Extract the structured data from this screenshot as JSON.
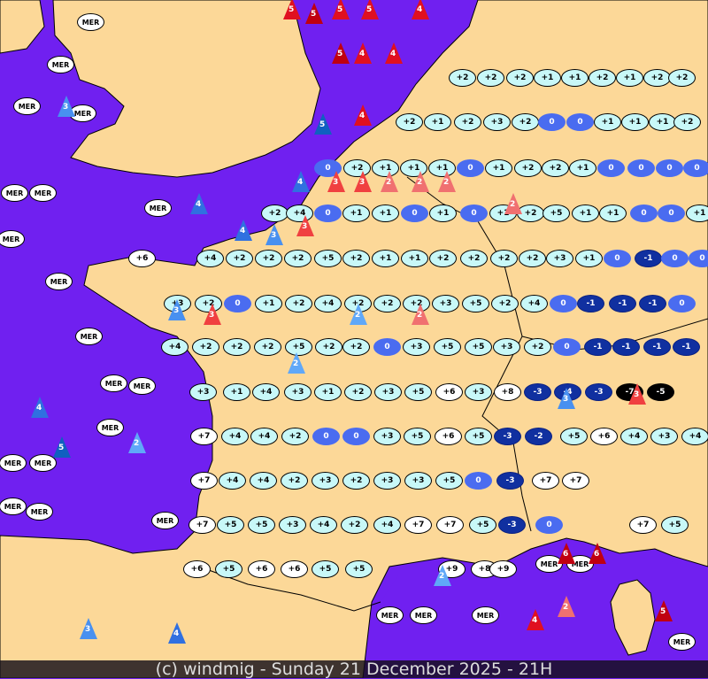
{
  "caption": "(c) windmig - Sunday 21 December 2025 - 21H",
  "colors": {
    "sea": "#7020f0",
    "land": "#fcd898",
    "temp_positive": "#c8f8f8",
    "temp_zero": "#4a6cf0",
    "temp_negative": "#1030a0",
    "wind_red": "#f04040",
    "wind_blue": "#4890f0"
  },
  "temperature_rows": [
    [
      "+2",
      "+2",
      "+2",
      "+1",
      "+1",
      "+2",
      "+1",
      "+2",
      "+2"
    ],
    [
      "+2",
      "+1",
      "+2",
      "+3",
      "+2",
      "0",
      "0",
      "+1",
      "+1",
      "+1",
      "+2"
    ],
    [
      "0",
      "+2",
      "+1",
      "+1",
      "+1",
      "0",
      "+1",
      "+2",
      "+2",
      "+1",
      "0",
      "0",
      "0",
      "0"
    ],
    [
      "+2",
      "+4",
      "0",
      "+1",
      "+1",
      "0",
      "+1",
      "0",
      "+1",
      "+2",
      "+5",
      "+1",
      "+1",
      "0",
      "0",
      "+1"
    ],
    [
      "+6",
      "+4",
      "+2",
      "+2",
      "+2",
      "+5",
      "+2",
      "+1",
      "+1",
      "+2",
      "+2",
      "+2",
      "+2",
      "+3",
      "+1",
      "0",
      "-1",
      "0",
      "0"
    ],
    [
      "+3",
      "+2",
      "0",
      "+1",
      "+2",
      "+4",
      "+2",
      "+2",
      "+2",
      "+3",
      "+5",
      "+2",
      "+4",
      "0",
      "-1",
      "-1",
      "-1",
      "0"
    ],
    [
      "+4",
      "+2",
      "+2",
      "+2",
      "+5",
      "+2",
      "+2",
      "0",
      "+3",
      "+5",
      "+5",
      "+3",
      "+2",
      "0",
      "-1",
      "-1",
      "-1",
      "-1"
    ],
    [
      "+3",
      "+1",
      "+4",
      "+3",
      "+1",
      "+2",
      "+3",
      "+5",
      "+6",
      "+3",
      "+8",
      "-3",
      "-4",
      "-3",
      "-7",
      "-5"
    ],
    [
      "+7",
      "+4",
      "+4",
      "+2",
      "0",
      "0",
      "+3",
      "+5",
      "+6",
      "+5",
      "-3",
      "-2",
      "+5",
      "+6",
      "+4",
      "+3",
      "+4"
    ],
    [
      "+7",
      "+4",
      "+4",
      "+2",
      "+3",
      "+2",
      "+3",
      "+3",
      "+5",
      "0",
      "-3",
      "+7",
      "+7"
    ],
    [
      "+7",
      "+5",
      "+5",
      "+3",
      "+4",
      "+2",
      "+4",
      "+7",
      "+7",
      "+5",
      "-3",
      "0",
      "+7",
      "+5"
    ],
    [
      "+6",
      "+5",
      "+6",
      "+6",
      "+5",
      "+5",
      "+9",
      "+8",
      "+9"
    ]
  ],
  "sea_labels": [
    "MER",
    "MER",
    "MER",
    "MER",
    "MER",
    "MER",
    "MER",
    "MER",
    "MER",
    "MER",
    "MER",
    "MER",
    "MER",
    "MER",
    "MER",
    "MER",
    "MER",
    "MER",
    "MER",
    "MER",
    "MER",
    "MER",
    "MER",
    "MER"
  ],
  "wind_arrows": [
    {
      "speed": "5",
      "tone": "red4"
    },
    {
      "speed": "5",
      "tone": "red4"
    },
    {
      "speed": "5",
      "tone": "red4"
    },
    {
      "speed": "4",
      "tone": "red4"
    },
    {
      "speed": "5",
      "tone": "red5"
    },
    {
      "speed": "4",
      "tone": "red4"
    },
    {
      "speed": "5",
      "tone": "red5"
    },
    {
      "speed": "4",
      "tone": "red4"
    },
    {
      "speed": "3",
      "tone": "red3"
    },
    {
      "speed": "3",
      "tone": "red3"
    },
    {
      "speed": "3",
      "tone": "red3"
    },
    {
      "speed": "2",
      "tone": "red2"
    },
    {
      "speed": "2",
      "tone": "red2"
    },
    {
      "speed": "2",
      "tone": "red2"
    },
    {
      "speed": "2",
      "tone": "red2"
    },
    {
      "speed": "3",
      "tone": "red3"
    },
    {
      "speed": "2",
      "tone": "blue2"
    },
    {
      "speed": "2",
      "tone": "blue2"
    },
    {
      "speed": "3",
      "tone": "blue3"
    },
    {
      "speed": "4",
      "tone": "blue4"
    },
    {
      "speed": "4",
      "tone": "blue4"
    },
    {
      "speed": "3",
      "tone": "blue3"
    },
    {
      "speed": "5",
      "tone": "blue5"
    },
    {
      "speed": "4",
      "tone": "blue4"
    },
    {
      "speed": "3",
      "tone": "blue3"
    },
    {
      "speed": "2",
      "tone": "blue2"
    },
    {
      "speed": "4",
      "tone": "blue4"
    },
    {
      "speed": "5",
      "tone": "blue5"
    },
    {
      "speed": "6",
      "tone": "red5"
    },
    {
      "speed": "6",
      "tone": "red5"
    },
    {
      "speed": "4",
      "tone": "red4"
    },
    {
      "speed": "5",
      "tone": "red5"
    },
    {
      "speed": "4",
      "tone": "red4"
    },
    {
      "speed": "3",
      "tone": "red3"
    },
    {
      "speed": "2",
      "tone": "red2"
    },
    {
      "speed": "2",
      "tone": "red2"
    },
    {
      "speed": "3",
      "tone": "blue3"
    },
    {
      "speed": "2",
      "tone": "blue2"
    },
    {
      "speed": "4",
      "tone": "blue4"
    },
    {
      "speed": "3",
      "tone": "blue3"
    }
  ]
}
